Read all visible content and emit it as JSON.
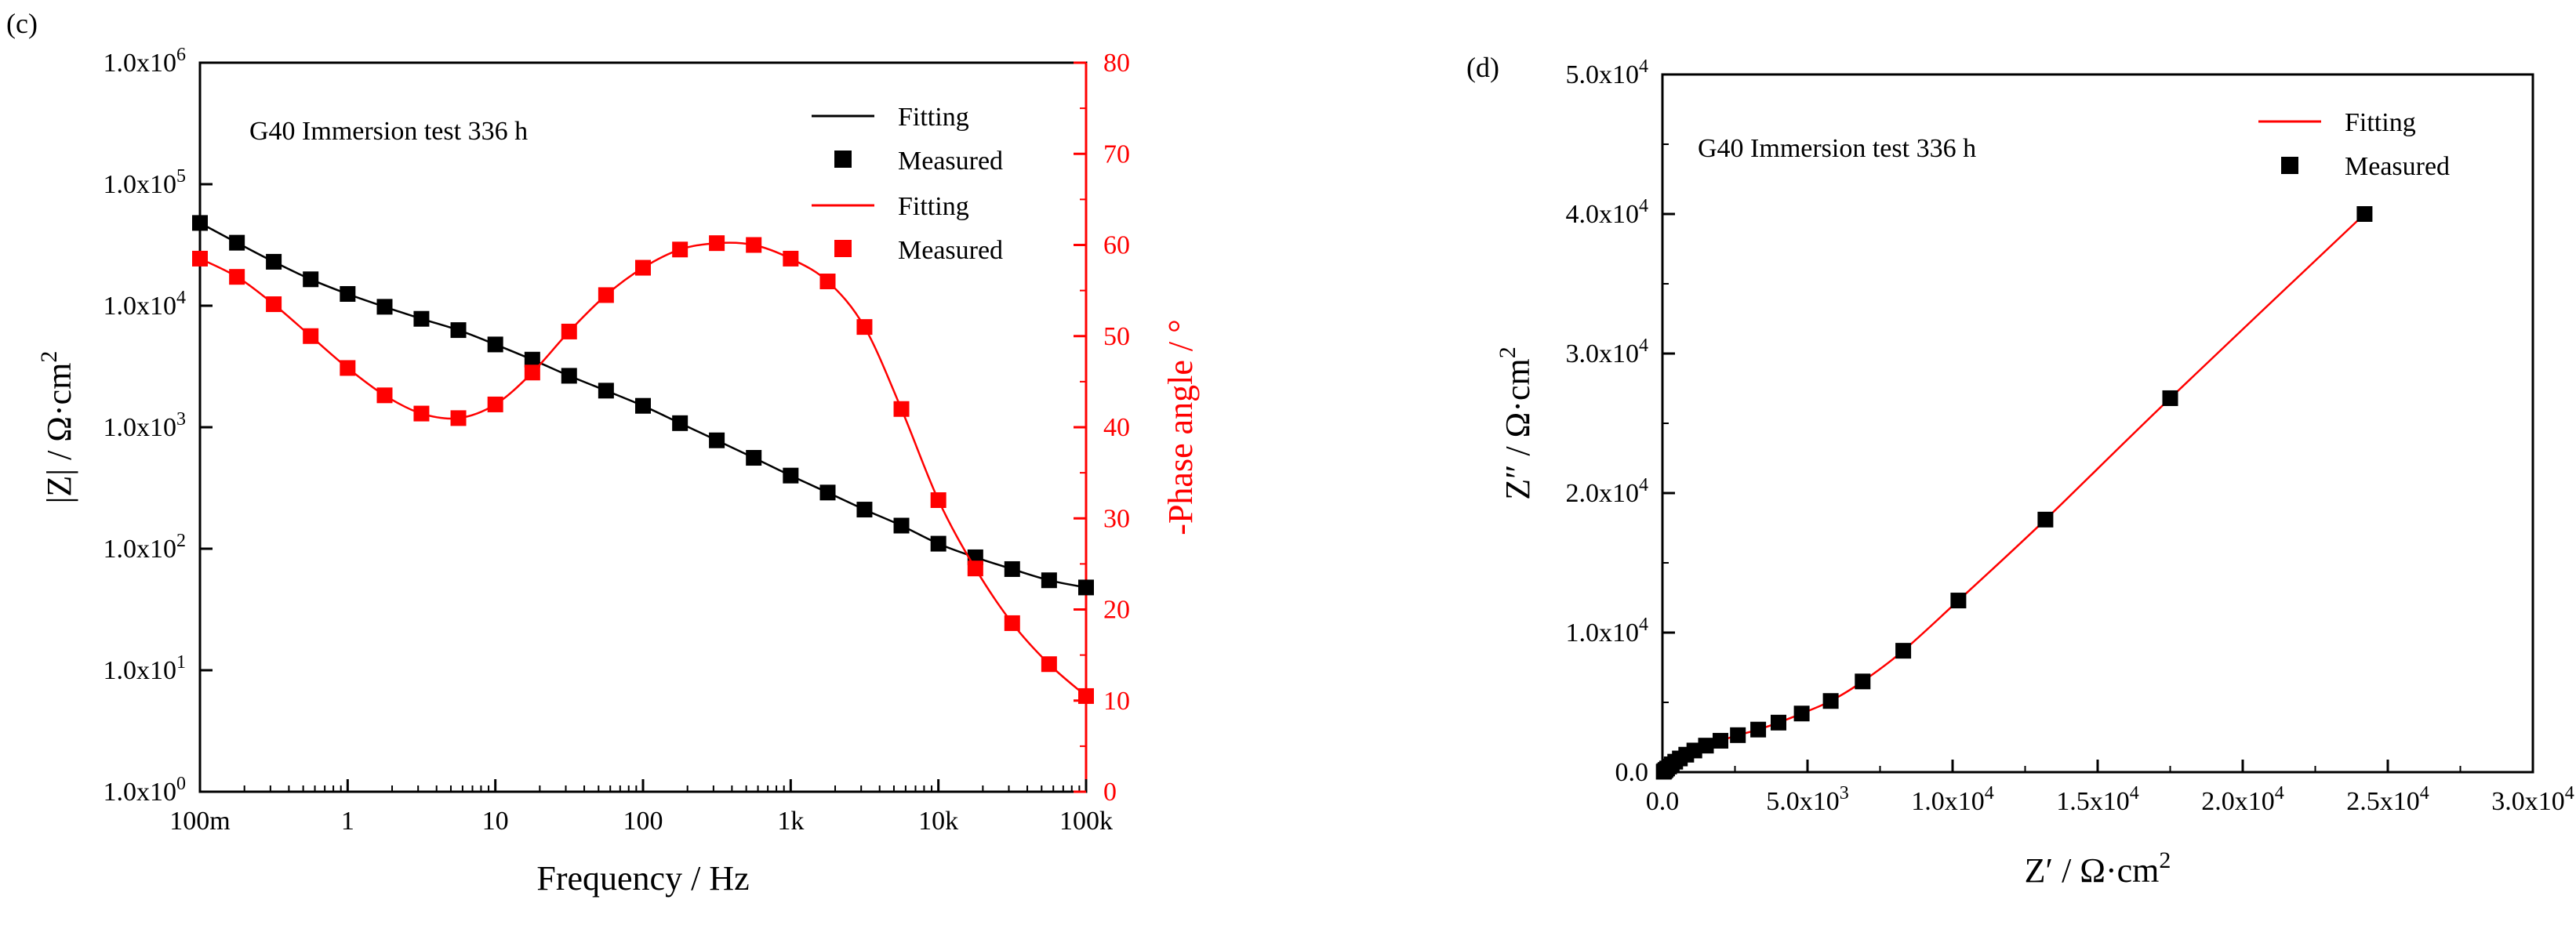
{
  "chart_data": [
    {
      "panel_label": "(c)",
      "type": "scatter",
      "annotation": "G40  Immersion test 336 h",
      "xlabel": "Frequency / Hz",
      "xscale": "log",
      "xlim": [
        0.1,
        100000
      ],
      "x_ticks": [
        {
          "value": 0.1,
          "label": "100m"
        },
        {
          "value": 1,
          "label": "1"
        },
        {
          "value": 10,
          "label": "10"
        },
        {
          "value": 100,
          "label": "100"
        },
        {
          "value": 1000,
          "label": "1k"
        },
        {
          "value": 10000,
          "label": "10k"
        },
        {
          "value": 100000,
          "label": "100k"
        }
      ],
      "y_left": {
        "label": "|Z| / Ω·cm",
        "label_sup": "2",
        "scale": "log",
        "lim": [
          1,
          1000000
        ],
        "ticks": [
          {
            "value": 1,
            "mant": "1.0x10",
            "exp": "0"
          },
          {
            "value": 10,
            "mant": "1.0x10",
            "exp": "1"
          },
          {
            "value": 100,
            "mant": "1.0x10",
            "exp": "2"
          },
          {
            "value": 1000,
            "mant": "1.0x10",
            "exp": "3"
          },
          {
            "value": 10000,
            "mant": "1.0x10",
            "exp": "4"
          },
          {
            "value": 100000,
            "mant": "1.0x10",
            "exp": "5"
          },
          {
            "value": 1000000,
            "mant": "1.0x10",
            "exp": "6"
          }
        ],
        "color": "#000000"
      },
      "y_right": {
        "label": "-Phase angle / °",
        "scale": "linear",
        "lim": [
          0,
          80
        ],
        "ticks": [
          0,
          10,
          20,
          30,
          40,
          50,
          60,
          70,
          80
        ],
        "color": "#ff0000"
      },
      "legend": {
        "position": "top-right",
        "entries": [
          {
            "label": "Fitting",
            "style": "line",
            "color": "#000000"
          },
          {
            "label": "Measured",
            "style": "marker",
            "color": "#000000"
          },
          {
            "label": "Fitting",
            "style": "line",
            "color": "#ff0000"
          },
          {
            "label": "Measured",
            "style": "marker",
            "color": "#ff0000"
          }
        ]
      },
      "series": [
        {
          "name": "|Z| Measured",
          "axis": "left",
          "color": "#000000",
          "x": [
            0.1,
            0.178,
            0.316,
            0.562,
            1,
            1.78,
            3.16,
            5.62,
            10,
            17.8,
            31.6,
            56.2,
            100,
            178,
            316,
            562,
            1000,
            1780,
            3160,
            5620,
            10000,
            17800,
            31600,
            56200,
            100000
          ],
          "y": [
            48000,
            33000,
            23000,
            16500,
            12500,
            9800,
            7800,
            6300,
            4800,
            3600,
            2650,
            2000,
            1500,
            1080,
            780,
            560,
            400,
            290,
            210,
            155,
            110,
            85,
            68,
            55,
            48
          ]
        },
        {
          "name": "Phase Measured",
          "axis": "right",
          "color": "#ff0000",
          "x": [
            0.1,
            0.178,
            0.316,
            0.562,
            1,
            1.78,
            3.16,
            5.62,
            10,
            17.8,
            31.6,
            56.2,
            100,
            178,
            316,
            562,
            1000,
            1780,
            3160,
            5620,
            10000,
            17800,
            31600,
            56200,
            100000
          ],
          "y": [
            58.5,
            56.5,
            53.5,
            50,
            46.5,
            43.5,
            41.5,
            41,
            42.5,
            46,
            50.5,
            54.5,
            57.5,
            59.5,
            60.2,
            60,
            58.5,
            56,
            51,
            42,
            32,
            24.5,
            18.5,
            14,
            10.5
          ]
        }
      ]
    },
    {
      "panel_label": "(d)",
      "type": "scatter",
      "annotation": "G40  Immersion test 336 h",
      "xlabel": "Z′ / Ω·cm",
      "xlabel_sup": "2",
      "ylabel": "Z″ / Ω·cm",
      "ylabel_sup": "2",
      "xlim": [
        0,
        30000
      ],
      "ylim": [
        0,
        50000
      ],
      "x_ticks": [
        {
          "value": 0,
          "mant": "0.0",
          "exp": ""
        },
        {
          "value": 5000,
          "mant": "5.0x10",
          "exp": "3"
        },
        {
          "value": 10000,
          "mant": "1.0x10",
          "exp": "4"
        },
        {
          "value": 15000,
          "mant": "1.5x10",
          "exp": "4"
        },
        {
          "value": 20000,
          "mant": "2.0x10",
          "exp": "4"
        },
        {
          "value": 25000,
          "mant": "2.5x10",
          "exp": "4"
        },
        {
          "value": 30000,
          "mant": "3.0x10",
          "exp": "4"
        }
      ],
      "y_ticks": [
        {
          "value": 0,
          "mant": "0.0",
          "exp": ""
        },
        {
          "value": 10000,
          "mant": "1.0x10",
          "exp": "4"
        },
        {
          "value": 20000,
          "mant": "2.0x10",
          "exp": "4"
        },
        {
          "value": 30000,
          "mant": "3.0x10",
          "exp": "4"
        },
        {
          "value": 40000,
          "mant": "4.0x10",
          "exp": "4"
        },
        {
          "value": 50000,
          "mant": "5.0x10",
          "exp": "4"
        }
      ],
      "legend": {
        "position": "top-right",
        "entries": [
          {
            "label": "Fitting",
            "style": "line",
            "color": "#ff0000"
          },
          {
            "label": "Measured",
            "style": "marker",
            "color": "#000000"
          }
        ]
      },
      "series": [
        {
          "name": "Measured",
          "color": "#000000",
          "x": [
            45,
            70,
            110,
            160,
            230,
            320,
            440,
            600,
            820,
            1100,
            1500,
            2000,
            2600,
            3300,
            4000,
            4800,
            5800,
            6900,
            8300,
            10200,
            13200,
            17500,
            24200
          ],
          "y": [
            30,
            80,
            160,
            260,
            400,
            560,
            750,
            980,
            1250,
            1550,
            1900,
            2250,
            2650,
            3050,
            3550,
            4200,
            5100,
            6500,
            8700,
            12300,
            18100,
            26800,
            40000
          ]
        }
      ]
    }
  ]
}
